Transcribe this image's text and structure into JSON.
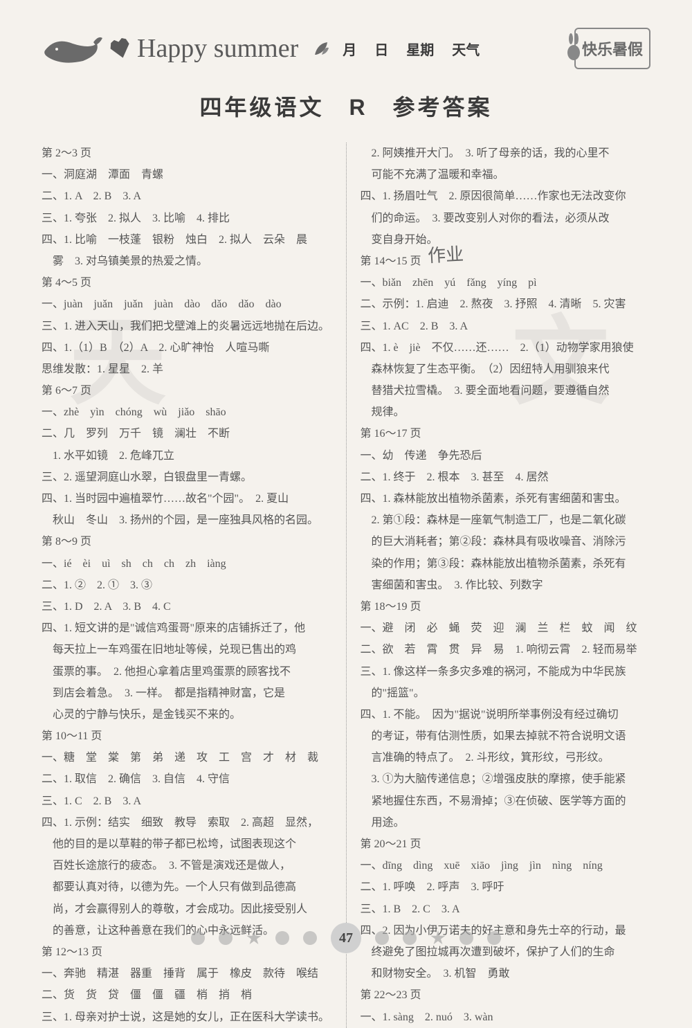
{
  "header": {
    "title_script": "Happy summer",
    "fields": [
      "月",
      "日",
      "星期",
      "天气"
    ],
    "stamp": "快乐暑假"
  },
  "main_title": "四年级语文　R　参考答案",
  "page_number": "47",
  "watermarks": [
    "天",
    "文"
  ],
  "hand_annotation": "作业",
  "left_col": [
    "第 2～3 页",
    "一、洞庭湖　潭面　青螺",
    "二、1. A　2. B　3. A",
    "三、1. 夸张　2. 拟人　3. 比喻　4. 排比",
    "四、1. 比喻　一枝蓬　银粉　烛白　2. 拟人　云朵　晨",
    "　雾　3. 对乌镇美景的热爱之情。",
    "第 4～5 页",
    "一、juàn　juǎn　juǎn　juàn　dào　dǎo　dǎo　dào",
    "三、1. 进入天山，我们把戈壁滩上的炎暑远远地抛在后边。",
    "四、1.（1）B　（2）A　2. 心旷神怡　人喧马嘶",
    "思维发散：1. 星星　2. 羊",
    "第 6～7 页",
    "一、zhè　yìn　chóng　wù　jiǎo　shāo",
    "二、几　罗列　万千　镜　澜壮　不断",
    "　1. 水平如镜　2. 危峰兀立",
    "三、2. 遥望洞庭山水翠，白银盘里一青螺。",
    "四、1. 当时园中遍植翠竹……故名\"个园\"。　2. 夏山",
    "　秋山　冬山　3. 扬州的个园，是一座独具风格的名园。",
    "第 8～9 页",
    "一、ié　èi　uì　sh　ch　ch　zh　iàng",
    "二、1. ②　2. ①　3. ③",
    "三、1. D　2. A　3. B　4. C",
    "四、1. 短文讲的是\"诚信鸡蛋哥\"原来的店铺拆迁了，他",
    "　每天拉上一车鸡蛋在旧地址等候，兑现已售出的鸡",
    "　蛋票的事。　2. 他担心拿着店里鸡蛋票的顾客找不",
    "　到店会着急。　3. 一样。　都是指精神财富，它是",
    "　心灵的宁静与快乐，是金钱买不来的。",
    "第 10～11 页",
    "一、糖　堂　棠　第　弟　递　攻　工　宫　才　材　裁",
    "二、1. 取信　2. 确信　3. 自信　4. 守信",
    "三、1. C　2. B　3. A",
    "四、1. 示例：结实　细致　教导　索取　2. 高超　显然，",
    "　他的目的是以草鞋的带子都已松垮，试图表现这个",
    "　百姓长途旅行的疲态。　3. 不管是演戏还是做人，",
    "　都要认真对待，以德为先。一个人只有做到品德高",
    "　尚，才会赢得别人的尊敬，才会成功。因此接受别人",
    "　的善意，让这种善意在我们的心中永远鲜活。",
    "第 12～13 页",
    "一、奔驰　精湛　器重　捶背　属于　橡皮　款待　喉结",
    "二、货　货　贷　僵　僵　疆　梢　捎　梢",
    "三、1. 母亲对护士说，这是她的女儿，正在医科大学读书。"
  ],
  "right_col": [
    "　2. 阿姨推开大门。　3. 听了母亲的话，我的心里不",
    "　可能不充满了温暖和幸福。",
    "四、1. 扬眉吐气　2. 原因很简单……作家也无法改变你",
    "　们的命运。　3. 要改变别人对你的看法，必须从改",
    "　变自身开始。",
    "第 14～15 页",
    "一、biǎn　zhēn　yú　fǎng　yíng　pì",
    "二、示例：1. 启迪　2. 熬夜　3. 抒照　4. 清晰　5. 灾害",
    "三、1. AC　2. B　3. A",
    "四、1. è　jiè　不仅……还……　2.（1）动物学家用狼使",
    "　森林恢复了生态平衡。　（2）因纽特人用驯狼来代",
    "　替猎犬拉雪橇。　3. 要全面地看问题，要遵循自然",
    "　规律。",
    "第 16～17 页",
    "一、幼　传递　争先恐后",
    "二、1. 终于　2. 根本　3. 甚至　4. 居然",
    "四、1. 森林能放出植物杀菌素，杀死有害细菌和害虫。",
    "　2. 第①段：森林是一座氧气制造工厂，也是二氧化碳",
    "　的巨大消耗者；第②段：森林具有吸收噪音、消除污",
    "　染的作用；第③段：森林能放出植物杀菌素，杀死有",
    "　害细菌和害虫。　3. 作比较、列数字",
    "第 18～19 页",
    "一、避　闭　必　蝇　荧　迎　澜　兰　栏　蚊　闻　纹",
    "二、欲　若　霄　贯　异　易　1. 响彻云霄　2. 轻而易举",
    "三、1. 像这样一条多灾多难的祸河，不能成为中华民族",
    "　的\"摇篮\"。",
    "四、1. 不能。　因为\"据说\"说明所举事例没有经过确切",
    "　的考证，带有估测性质，如果去掉就不符合说明文语",
    "　言准确的特点了。　2. 斗形纹，箕形纹，弓形纹。",
    "　3. ①为大脑传递信息；②增强皮肤的摩擦，使手能紧",
    "　紧地握住东西，不易滑掉；③在侦破、医学等方面的",
    "　用途。",
    "第 20～21 页",
    "一、dīng　dìng　xuē　xiāo　jìng　jìn　nìng　níng",
    "二、1. 呼唤　2. 呼声　3. 呼吁",
    "三、1. B　2. C　3. A",
    "四、2. 因为小伊万诺夫的好主意和身先士卒的行动，最",
    "　终避免了图拉城再次遭到破坏，保护了人们的生命",
    "　和财物安全。　3. 机智　勇敢",
    "第 22～23 页",
    "一、1. sàng　2. nuó　3. wàn"
  ]
}
